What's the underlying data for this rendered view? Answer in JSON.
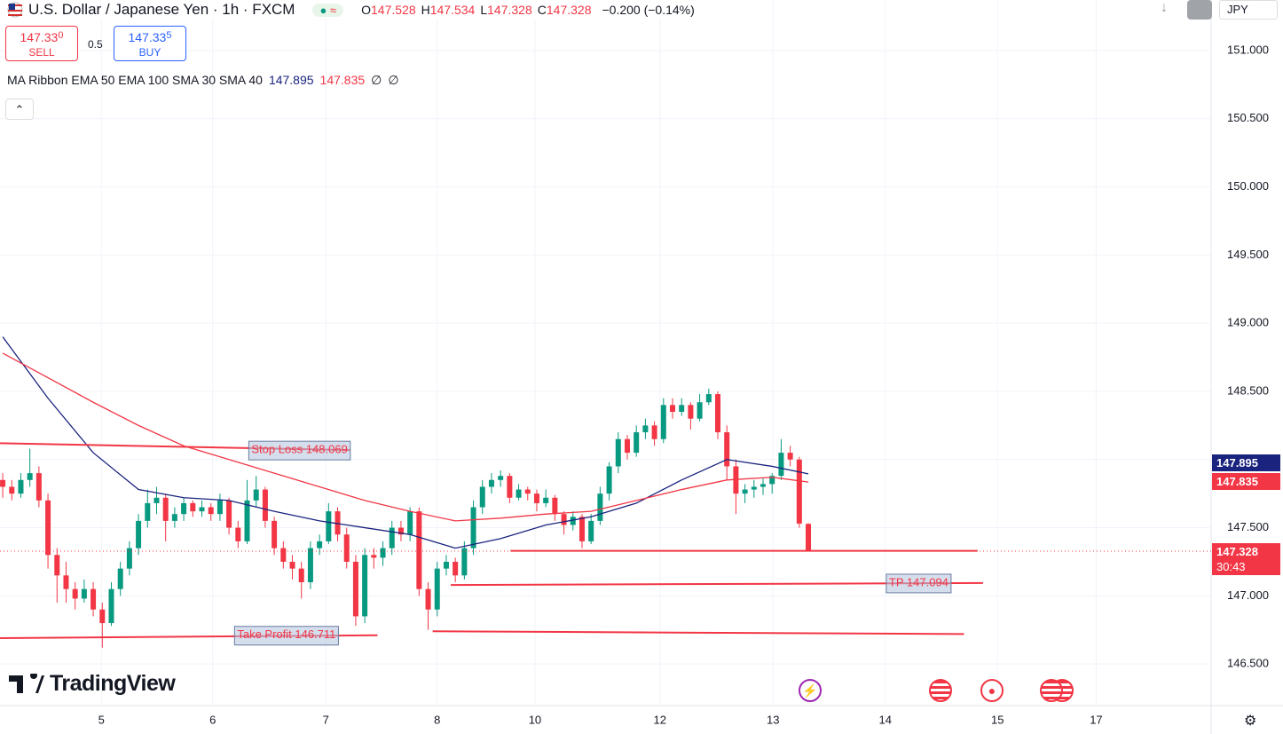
{
  "header": {
    "title": "U.S. Dollar / Japanese Yen · 1h · FXCM",
    "ohlc": [
      {
        "label": "O",
        "value": "147.528"
      },
      {
        "label": "H",
        "value": "147.534"
      },
      {
        "label": "L",
        "value": "147.328"
      },
      {
        "label": "C",
        "value": "147.328"
      }
    ],
    "change": "−0.200 (−0.14%)"
  },
  "trade": {
    "sell_price": "147.33",
    "sell_pip": "0",
    "sell_label": "SELL",
    "spread": "0.5",
    "buy_price": "147.33",
    "buy_pip": "5",
    "buy_label": "BUY"
  },
  "indicator": {
    "name": "MA Ribbon EMA 50 EMA 100 SMA 30 SMA 40",
    "values": [
      "147.895",
      "147.835",
      "∅",
      "∅"
    ]
  },
  "currency": "JPY",
  "logo": "TradingView",
  "chart_data": {
    "type": "candlestick",
    "up_color": "#089981",
    "down_color": "#f23645",
    "ohlc": [
      [
        147.85,
        147.9,
        147.72,
        147.8
      ],
      [
        147.8,
        147.85,
        147.7,
        147.75
      ],
      [
        147.75,
        147.9,
        147.72,
        147.85
      ],
      [
        147.85,
        148.08,
        147.8,
        147.9
      ],
      [
        147.9,
        147.95,
        147.65,
        147.7
      ],
      [
        147.7,
        147.75,
        147.2,
        147.3
      ],
      [
        147.3,
        147.35,
        146.95,
        147.15
      ],
      [
        147.15,
        147.25,
        146.95,
        147.05
      ],
      [
        147.05,
        147.1,
        146.9,
        146.98
      ],
      [
        146.98,
        147.12,
        146.95,
        147.05
      ],
      [
        147.05,
        147.1,
        146.85,
        146.9
      ],
      [
        146.9,
        146.95,
        146.62,
        146.8
      ],
      [
        146.8,
        147.1,
        146.78,
        147.05
      ],
      [
        147.05,
        147.25,
        147.0,
        147.2
      ],
      [
        147.2,
        147.4,
        147.15,
        147.35
      ],
      [
        147.35,
        147.6,
        147.3,
        147.55
      ],
      [
        147.55,
        147.78,
        147.5,
        147.68
      ],
      [
        147.68,
        147.8,
        147.6,
        147.72
      ],
      [
        147.72,
        147.75,
        147.4,
        147.55
      ],
      [
        147.55,
        147.65,
        147.5,
        147.6
      ],
      [
        147.6,
        147.72,
        147.55,
        147.68
      ],
      [
        147.68,
        147.7,
        147.58,
        147.62
      ],
      [
        147.62,
        147.7,
        147.58,
        147.65
      ],
      [
        147.65,
        147.68,
        147.55,
        147.6
      ],
      [
        147.6,
        147.75,
        147.55,
        147.7
      ],
      [
        147.7,
        147.72,
        147.45,
        147.5
      ],
      [
        147.5,
        147.55,
        147.35,
        147.4
      ],
      [
        147.4,
        147.85,
        147.38,
        147.7
      ],
      [
        147.7,
        147.88,
        147.65,
        147.78
      ],
      [
        147.78,
        147.8,
        147.5,
        147.55
      ],
      [
        147.55,
        147.58,
        147.3,
        147.35
      ],
      [
        147.35,
        147.4,
        147.2,
        147.25
      ],
      [
        147.25,
        147.3,
        147.12,
        147.2
      ],
      [
        147.2,
        147.25,
        146.98,
        147.1
      ],
      [
        147.1,
        147.4,
        147.05,
        147.35
      ],
      [
        147.35,
        147.45,
        147.3,
        147.4
      ],
      [
        147.4,
        147.68,
        147.38,
        147.62
      ],
      [
        147.62,
        147.65,
        147.4,
        147.45
      ],
      [
        147.45,
        147.5,
        147.2,
        147.25
      ],
      [
        147.25,
        147.3,
        146.78,
        146.85
      ],
      [
        146.85,
        147.35,
        146.8,
        147.3
      ],
      [
        147.3,
        147.35,
        147.2,
        147.28
      ],
      [
        147.28,
        147.4,
        147.22,
        147.35
      ],
      [
        147.35,
        147.55,
        147.3,
        147.5
      ],
      [
        147.5,
        147.55,
        147.4,
        147.45
      ],
      [
        147.45,
        147.65,
        147.4,
        147.62
      ],
      [
        147.62,
        147.65,
        147.0,
        147.05
      ],
      [
        147.05,
        147.1,
        146.75,
        146.9
      ],
      [
        146.9,
        147.25,
        146.85,
        147.2
      ],
      [
        147.2,
        147.3,
        147.15,
        147.25
      ],
      [
        147.25,
        147.28,
        147.1,
        147.15
      ],
      [
        147.15,
        147.4,
        147.12,
        147.35
      ],
      [
        147.35,
        147.7,
        147.3,
        147.65
      ],
      [
        147.65,
        147.85,
        147.6,
        147.8
      ],
      [
        147.8,
        147.9,
        147.75,
        147.85
      ],
      [
        147.85,
        147.92,
        147.8,
        147.88
      ],
      [
        147.88,
        147.9,
        147.68,
        147.72
      ],
      [
        147.72,
        147.82,
        147.7,
        147.78
      ],
      [
        147.78,
        147.8,
        147.7,
        147.75
      ],
      [
        147.75,
        147.78,
        147.62,
        147.68
      ],
      [
        147.68,
        147.78,
        147.65,
        147.72
      ],
      [
        147.72,
        147.74,
        147.55,
        147.6
      ],
      [
        147.6,
        147.62,
        147.45,
        147.52
      ],
      [
        147.52,
        147.62,
        147.48,
        147.58
      ],
      [
        147.58,
        147.6,
        147.35,
        147.4
      ],
      [
        147.4,
        147.6,
        147.38,
        147.55
      ],
      [
        147.55,
        147.8,
        147.52,
        147.75
      ],
      [
        147.75,
        147.98,
        147.7,
        147.95
      ],
      [
        147.95,
        148.2,
        147.9,
        148.15
      ],
      [
        148.15,
        148.18,
        148.0,
        148.05
      ],
      [
        148.05,
        148.25,
        148.02,
        148.2
      ],
      [
        148.2,
        148.3,
        148.15,
        148.25
      ],
      [
        148.25,
        148.28,
        148.1,
        148.15
      ],
      [
        148.15,
        148.45,
        148.12,
        148.4
      ],
      [
        148.4,
        148.45,
        148.3,
        148.35
      ],
      [
        148.35,
        148.45,
        148.32,
        148.4
      ],
      [
        148.4,
        148.42,
        148.22,
        148.3
      ],
      [
        148.3,
        148.48,
        148.28,
        148.42
      ],
      [
        148.42,
        148.52,
        148.4,
        148.48
      ],
      [
        148.48,
        148.5,
        148.15,
        148.2
      ],
      [
        148.2,
        148.25,
        147.85,
        147.95
      ],
      [
        147.95,
        148.0,
        147.6,
        147.75
      ],
      [
        147.75,
        147.82,
        147.68,
        147.78
      ],
      [
        147.78,
        147.85,
        147.72,
        147.8
      ],
      [
        147.8,
        147.86,
        147.74,
        147.82
      ],
      [
        147.82,
        147.9,
        147.75,
        147.88
      ],
      [
        147.88,
        148.15,
        147.85,
        148.05
      ],
      [
        148.05,
        148.1,
        147.95,
        148.0
      ],
      [
        148.0,
        148.02,
        147.5,
        147.53
      ],
      [
        147.528,
        147.534,
        147.328,
        147.328
      ]
    ],
    "series": [
      {
        "color": "#1a237e",
        "x": [
          0,
          5,
          10,
          15,
          20,
          25,
          30,
          35,
          40,
          45,
          50,
          55,
          60,
          65,
          70,
          75,
          80,
          85,
          89
        ],
        "values": [
          148.9,
          148.45,
          148.05,
          147.78,
          147.72,
          147.7,
          147.62,
          147.55,
          147.5,
          147.45,
          147.35,
          147.42,
          147.52,
          147.58,
          147.68,
          147.85,
          148.0,
          147.95,
          147.895
        ]
      },
      {
        "color": "#f23645",
        "x": [
          0,
          5,
          10,
          15,
          20,
          25,
          30,
          35,
          40,
          45,
          50,
          55,
          60,
          65,
          70,
          75,
          80,
          85,
          89
        ],
        "values": [
          148.78,
          148.6,
          148.42,
          148.25,
          148.1,
          148.0,
          147.9,
          147.8,
          147.7,
          147.62,
          147.55,
          147.57,
          147.6,
          147.62,
          147.7,
          147.78,
          147.85,
          147.87,
          147.835
        ]
      }
    ],
    "levels": [
      {
        "label": "Stop Loss 148.069",
        "from": -0.3,
        "to": 38.4,
        "values": [
          148.12,
          148.069
        ]
      },
      {
        "label": "Take Profit 146.711",
        "from": -0.3,
        "to": 41.4,
        "values": [
          146.69,
          146.711
        ]
      },
      {
        "label": "TP 147.094",
        "from": 49.5,
        "to": 108.3,
        "values": [
          147.08,
          147.094
        ]
      },
      {
        "from": 56.1,
        "to": 107.7,
        "values": [
          147.33,
          147.33
        ]
      },
      {
        "from": 47.5,
        "to": 106.2,
        "values": [
          146.74,
          146.72
        ]
      }
    ],
    "countdown": "30:43",
    "xlim": [
      -0.3,
      133.5
    ],
    "ylim": [
      146.195,
      151.371
    ],
    "xticks": [
      {
        "value": 10.9,
        "label": "5"
      },
      {
        "value": 23.2,
        "label": "6"
      },
      {
        "value": 35.7,
        "label": "7"
      },
      {
        "value": 48.0,
        "label": "8"
      },
      {
        "value": 58.8,
        "label": "10"
      },
      {
        "value": 72.6,
        "label": "12"
      },
      {
        "value": 85.1,
        "label": "13"
      },
      {
        "value": 97.5,
        "label": "14"
      },
      {
        "value": 109.9,
        "label": "15"
      },
      {
        "value": 120.8,
        "label": "17"
      }
    ],
    "yticks": [
      {
        "value": 146.5,
        "label": "146.500"
      },
      {
        "value": 147,
        "label": "147.000"
      },
      {
        "value": 147.5,
        "label": "147.500"
      },
      {
        "value": 148,
        "label": "148.000"
      },
      {
        "value": 148.5,
        "label": "148.500"
      },
      {
        "value": 149,
        "label": "149.000"
      },
      {
        "value": 149.5,
        "label": "149.500"
      },
      {
        "value": 150,
        "label": "150.000"
      },
      {
        "value": 150.5,
        "label": "150.500"
      },
      {
        "value": 151,
        "label": "151.000"
      }
    ],
    "grid": true
  }
}
